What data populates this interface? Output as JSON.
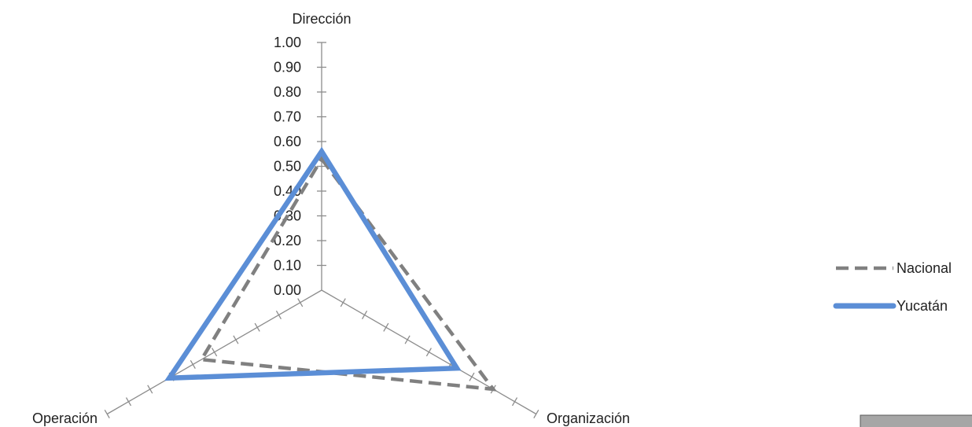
{
  "chart_data": {
    "type": "radar",
    "axes": [
      "Dirección",
      "Organización",
      "Operación"
    ],
    "radial_ticks": [
      "0.00",
      "0.10",
      "0.20",
      "0.30",
      "0.40",
      "0.50",
      "0.60",
      "0.70",
      "0.80",
      "0.90",
      "1.00"
    ],
    "rlim": [
      0,
      1
    ],
    "series": [
      {
        "name": "Nacional",
        "values": [
          0.53,
          0.8,
          0.56
        ],
        "style": "dashed",
        "color": "#808080"
      },
      {
        "name": "Yucatán",
        "values": [
          0.56,
          0.63,
          0.71
        ],
        "style": "solid",
        "color": "#5B8ED6"
      }
    ],
    "legend_position": "right",
    "grid": false
  }
}
